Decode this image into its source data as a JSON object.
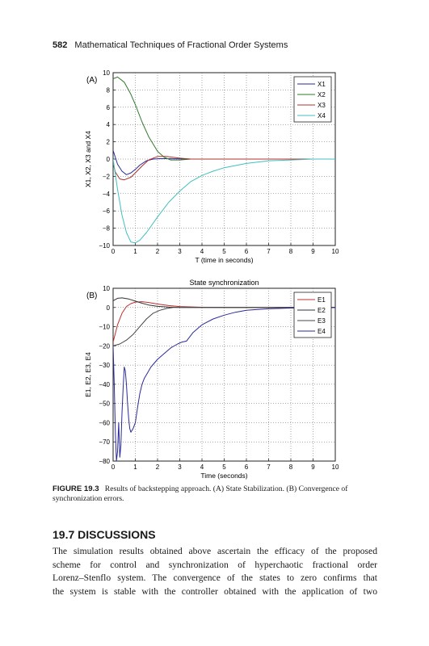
{
  "header": {
    "page_number": "582",
    "running_title": "Mathematical Techniques of Fractional Order Systems"
  },
  "figure": {
    "caption_label": "FIGURE 19.3",
    "caption_text": "Results of backstepping approach. (A) State Stabilization. (B) Convergence of synchronization errors."
  },
  "section": {
    "title": "19.7   DISCUSSIONS",
    "lines": [
      "The simulation results obtained above ascertain the efficacy of the proposed",
      "scheme for control and synchronization of hyperchaotic fractional order",
      "Lorenz–Stenflo system. The convergence of the states to zero confirms that",
      "the system is stable with the controller obtained with the application of two"
    ]
  },
  "chart_data": [
    {
      "type": "line",
      "panel_label": "(A)",
      "title": "",
      "xlabel": "T (time in seconds)",
      "ylabel": "X1, X2, X3 and X4",
      "xlim": [
        0,
        10
      ],
      "ylim": [
        -10,
        10
      ],
      "xticks": [
        0,
        1,
        2,
        3,
        4,
        5,
        6,
        7,
        8,
        9,
        10
      ],
      "yticks": [
        10,
        8,
        6,
        4,
        2,
        0,
        -2,
        -4,
        -6,
        -8,
        -10
      ],
      "grid": true,
      "legend_position": "top-right",
      "series": [
        {
          "name": "X1",
          "color": "#2a2a9a",
          "x": [
            0,
            0.2,
            0.4,
            0.6,
            0.8,
            1.0,
            1.2,
            1.5,
            1.8,
            2.1,
            2.5,
            3.0,
            3.5,
            4.0,
            5.0,
            6.0,
            10.0
          ],
          "y": [
            1.0,
            -0.6,
            -1.4,
            -1.8,
            -1.6,
            -1.2,
            -0.7,
            -0.2,
            0.0,
            0.05,
            0.05,
            0.02,
            0.0,
            0.0,
            0.0,
            0.0,
            0.0
          ]
        },
        {
          "name": "X2",
          "color": "#2e7a2e",
          "x": [
            0,
            0.2,
            0.5,
            0.8,
            1.0,
            1.3,
            1.6,
            2.0,
            2.3,
            2.6,
            3.0,
            3.5,
            4.0,
            5.0,
            10.0
          ],
          "y": [
            9.3,
            9.5,
            8.9,
            7.5,
            6.3,
            4.3,
            2.6,
            0.9,
            0.2,
            -0.1,
            -0.1,
            0.0,
            0.0,
            0.0,
            0.0
          ]
        },
        {
          "name": "X3",
          "color": "#b03030",
          "x": [
            0,
            0.1,
            0.3,
            0.5,
            0.8,
            1.0,
            1.3,
            1.6,
            2.0,
            2.4,
            3.0,
            3.5,
            4.0,
            5.0,
            10.0
          ],
          "y": [
            -0.5,
            -1.5,
            -2.3,
            -2.4,
            -2.1,
            -1.6,
            -0.8,
            -0.1,
            0.3,
            0.3,
            0.1,
            0.0,
            0.0,
            0.0,
            0.0
          ]
        },
        {
          "name": "X4",
          "color": "#40c0c0",
          "x": [
            0,
            0.2,
            0.4,
            0.6,
            0.8,
            1.0,
            1.2,
            1.5,
            2.0,
            2.5,
            3.0,
            3.5,
            4.0,
            4.5,
            5.0,
            6.0,
            7.0,
            8.0,
            9.0,
            10.0
          ],
          "y": [
            0.0,
            -3.5,
            -6.5,
            -8.5,
            -9.6,
            -9.7,
            -9.4,
            -8.5,
            -6.7,
            -5.0,
            -3.7,
            -2.6,
            -1.9,
            -1.4,
            -1.0,
            -0.5,
            -0.2,
            -0.1,
            0.0,
            0.0
          ]
        }
      ]
    },
    {
      "type": "line",
      "panel_label": "(B)",
      "title": "State synchronization",
      "xlabel": "Time (seconds)",
      "ylabel": "E1, E2, E3, E4",
      "xlim": [
        0,
        10
      ],
      "ylim": [
        -80,
        10
      ],
      "xticks": [
        0,
        1,
        2,
        3,
        4,
        5,
        6,
        7,
        8,
        9,
        10
      ],
      "yticks": [
        10,
        0,
        -10,
        -20,
        -30,
        -40,
        -50,
        -60,
        -70,
        -80
      ],
      "grid": true,
      "legend_position": "top-right",
      "series": [
        {
          "name": "E1",
          "color": "#c03030",
          "x": [
            0,
            0.2,
            0.4,
            0.6,
            0.8,
            1.0,
            1.3,
            1.6,
            2.0,
            2.5,
            3.0,
            4.0,
            5.0,
            10.0
          ],
          "y": [
            -18,
            -9,
            -3,
            0.5,
            2.0,
            2.8,
            3.0,
            2.6,
            1.8,
            1.0,
            0.5,
            0.1,
            0.0,
            0.0
          ]
        },
        {
          "name": "E2",
          "color": "#333333",
          "x": [
            0,
            0.2,
            0.4,
            0.7,
            1.0,
            1.3,
            1.6,
            2.0,
            2.5,
            3.0,
            3.5,
            4.0,
            5.0,
            10.0
          ],
          "y": [
            3.5,
            4.8,
            5.0,
            4.4,
            3.3,
            2.2,
            1.3,
            0.6,
            0.2,
            0.0,
            0.0,
            0.0,
            0.0,
            0.0
          ]
        },
        {
          "name": "E3",
          "color": "#444444",
          "x": [
            0,
            0.3,
            0.6,
            0.9,
            1.2,
            1.5,
            1.8,
            2.1,
            2.4,
            2.7,
            3.0,
            3.5,
            4.0,
            5.0,
            10.0
          ],
          "y": [
            -20,
            -19,
            -17,
            -14,
            -10,
            -6,
            -3,
            -1.5,
            -0.5,
            0.0,
            0.0,
            0.0,
            0.0,
            0.0,
            0.0
          ]
        },
        {
          "name": "E4",
          "color": "#2a2a9a",
          "x": [
            0,
            0.05,
            0.1,
            0.15,
            0.2,
            0.25,
            0.3,
            0.35,
            0.4,
            0.45,
            0.5,
            0.55,
            0.6,
            0.65,
            0.7,
            0.75,
            0.8,
            0.9,
            1.0,
            1.1,
            1.2,
            1.3,
            1.4,
            1.5,
            1.7,
            2.0,
            2.3,
            2.6,
            2.9,
            3.1,
            3.3,
            3.6,
            4.0,
            4.5,
            5.0,
            5.5,
            6.0,
            6.5,
            7.0,
            8.0,
            9.0,
            10.0
          ],
          "y": [
            -20,
            -40,
            -65,
            -80,
            -75,
            -60,
            -78,
            -72,
            -55,
            -42,
            -31,
            -33,
            -40,
            -50,
            -58,
            -63,
            -65,
            -63,
            -60,
            -52,
            -45,
            -40,
            -37,
            -35,
            -31,
            -27,
            -24,
            -21,
            -19,
            -18,
            -17.5,
            -13,
            -9,
            -6,
            -4,
            -2.5,
            -1.5,
            -1,
            -0.7,
            -0.3,
            -0.1,
            0.0
          ]
        }
      ]
    }
  ]
}
